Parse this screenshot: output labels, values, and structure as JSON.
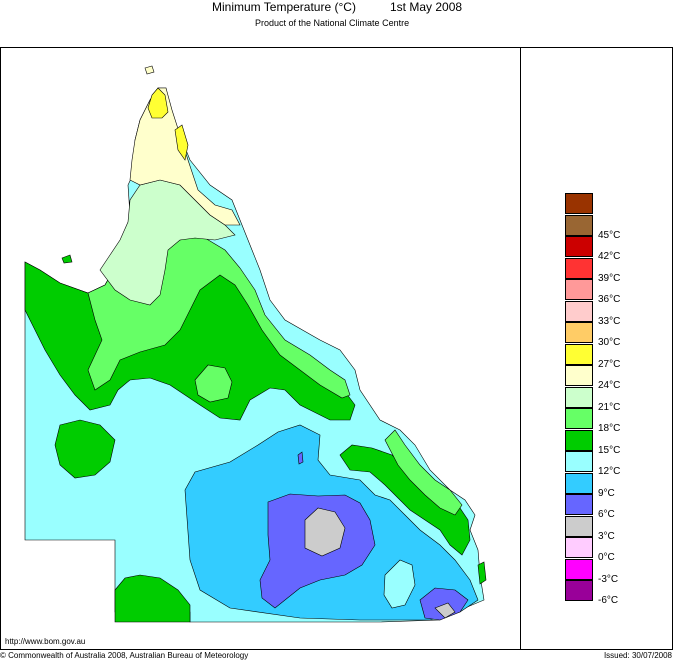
{
  "header": {
    "title": "Minimum Temperature (°C)",
    "date": "1st May 2008",
    "subtitle": "Product of the National Climate Centre"
  },
  "legend": {
    "items": [
      {
        "label": "",
        "color": "#993300"
      },
      {
        "label": "45°C",
        "color": "#996633"
      },
      {
        "label": "42°C",
        "color": "#cc0000"
      },
      {
        "label": "39°C",
        "color": "#ff3333"
      },
      {
        "label": "36°C",
        "color": "#ff9999"
      },
      {
        "label": "33°C",
        "color": "#ffcccc"
      },
      {
        "label": "30°C",
        "color": "#ffcc66"
      },
      {
        "label": "27°C",
        "color": "#ffff33"
      },
      {
        "label": "24°C",
        "color": "#ffffcc"
      },
      {
        "label": "21°C",
        "color": "#ccffcc"
      },
      {
        "label": "18°C",
        "color": "#66ff66"
      },
      {
        "label": "15°C",
        "color": "#00cc00"
      },
      {
        "label": "12°C",
        "color": "#99ffff"
      },
      {
        "label": "9°C",
        "color": "#33ccff"
      },
      {
        "label": "6°C",
        "color": "#6666ff"
      },
      {
        "label": "3°C",
        "color": "#cccccc"
      },
      {
        "label": "0°C",
        "color": "#ffccff"
      },
      {
        "label": "-3°C",
        "color": "#ff00ff"
      },
      {
        "label": "-6°C",
        "color": "#990099"
      }
    ]
  },
  "footer": {
    "url": "http://www.bom.gov.au",
    "copyright": "© Commonwealth of Australia 2008, Australian Bureau of Meteorology",
    "issued": "Issued: 30/07/2008"
  }
}
